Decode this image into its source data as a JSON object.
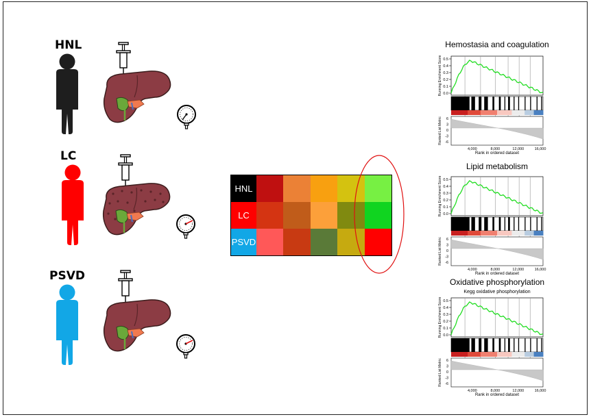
{
  "groups": [
    {
      "label": "HNL",
      "color": "#1e1e1e"
    },
    {
      "label": "LC",
      "color": "#ff0000"
    },
    {
      "label": "PSVD",
      "color": "#12a7e6"
    }
  ],
  "heatmap": {
    "row_label_colors": [
      "#000000",
      "#ff0000",
      "#12a7e6"
    ],
    "cells": [
      [
        "#bf1010",
        "#eb8136",
        "#f8a010",
        "#d4c210",
        "#77f043"
      ],
      [
        "#d43412",
        "#c05c1a",
        "#fca03a",
        "#808a10",
        "#10d420"
      ],
      [
        "#ff5858",
        "#c83a12",
        "#5a7a38",
        "#c6aa10",
        "#ff0000"
      ]
    ],
    "highlight_color": "#e01010"
  },
  "gsea_plots": [
    {
      "title": "Hemostasia and coagulation",
      "subtitle": ""
    },
    {
      "title": "Lipid metabolism",
      "subtitle": ""
    },
    {
      "title": "Oxidative phosphorylation",
      "subtitle": "Kegg oxidative phosphorylation"
    }
  ],
  "gsea_axes": {
    "ylabel_top": "Running Enrichment Score",
    "ylabel_bottom": "Ranked List Metric",
    "xlabel": "Rank in ordered dataset",
    "es_ticks": [
      "0.5",
      "0.4",
      "0.3",
      "0.2",
      "0.1",
      "0.0"
    ],
    "metric_ticks": [
      "6",
      "3",
      "0",
      "-3",
      "-6"
    ],
    "x_ticks": [
      "4,000",
      "8,000",
      "12,000",
      "16,000"
    ],
    "curve_color": "#22dd22"
  }
}
